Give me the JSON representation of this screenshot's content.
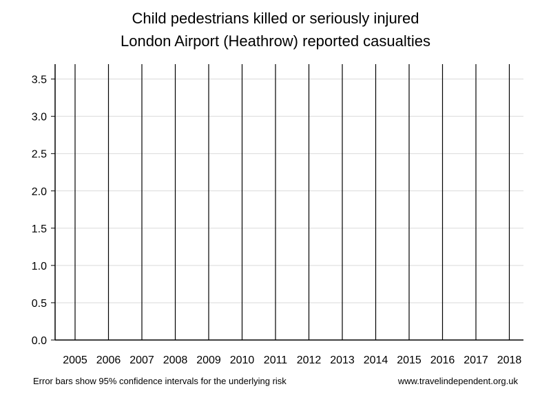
{
  "chart_data": {
    "type": "bar",
    "title": "Child pedestrians killed or seriously injured",
    "subtitle": "London Airport (Heathrow) reported casualties",
    "xlabel": "",
    "ylabel": "",
    "categories": [
      "2005",
      "2006",
      "2007",
      "2008",
      "2009",
      "2010",
      "2011",
      "2012",
      "2013",
      "2014",
      "2015",
      "2016",
      "2017",
      "2018"
    ],
    "values": [
      0,
      0,
      0,
      0,
      0,
      0,
      0,
      0,
      0,
      0,
      0,
      0,
      0,
      0
    ],
    "error_upper": [
      3.7,
      3.7,
      3.7,
      3.7,
      3.7,
      3.7,
      3.7,
      3.7,
      3.7,
      3.7,
      3.7,
      3.7,
      3.7,
      3.7
    ],
    "error_lower": [
      0,
      0,
      0,
      0,
      0,
      0,
      0,
      0,
      0,
      0,
      0,
      0,
      0,
      0
    ],
    "ylim": [
      0,
      3.7
    ],
    "yticks": [
      "0.0",
      "0.5",
      "1.0",
      "1.5",
      "2.0",
      "2.5",
      "3.0",
      "3.5"
    ],
    "grid": true,
    "colors": {
      "gridline": "#d9d9d9",
      "axis": "#000000",
      "error_bar": "#000000"
    }
  },
  "footer": {
    "note": "Error bars show 95% confidence intervals for the underlying risk",
    "source": "www.travelindependent.org.uk"
  }
}
